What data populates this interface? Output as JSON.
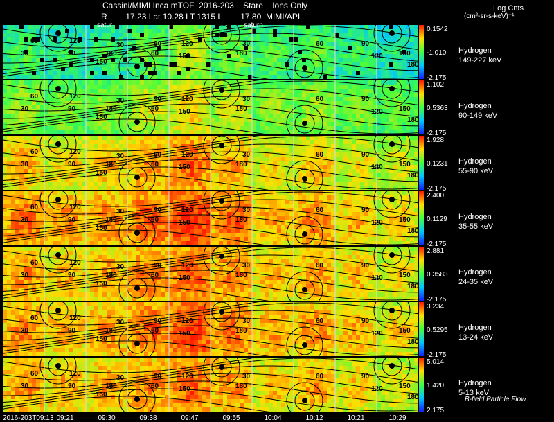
{
  "header": {
    "title": "Cassini/MIMI Inca mTOF  2016-203    Stare    Ions Only",
    "subline": "R        17.23 Lat 10.28 LT 1315 L        17.80  MIMI/APL",
    "unit_title": "Log Cnts",
    "unit_sub": "(cm²-sr-s-keV)⁻¹",
    "saturn_markers": [
      "satur",
      "saturn"
    ]
  },
  "footer": {
    "note": "B-field Particle Flow"
  },
  "colors": {
    "low": "#2040ff",
    "mid": "#30ff60",
    "high": "#ff2a00",
    "background": "#000000",
    "contour": "#000000"
  },
  "chart_data": {
    "type": "heatmap",
    "title": "Cassini/MIMI Inca mTOF  2016-203    Stare    Ions Only",
    "x_tick_labels": [
      "2016-203T09:13",
      "09:21",
      "09:30",
      "09:38",
      "09:47",
      "09:55",
      "10:04",
      "10:12",
      "10:21",
      "10:29"
    ],
    "frames_per_panel": 10,
    "contour_labels": [
      "30",
      "60",
      "90",
      "120",
      "150",
      "180"
    ],
    "panels": [
      {
        "species": "Hydrogen",
        "energy": "149-227 keV",
        "cb_max": "0.1542",
        "cb_mid": "-1.010",
        "cb_min": "-2.175",
        "intensity": [
          0.38,
          0.33,
          0.36,
          0.44,
          0.55,
          0.45,
          0.4,
          0.42,
          0.36,
          0.3
        ]
      },
      {
        "species": "Hydrogen",
        "energy": "90-149 keV",
        "cb_max": "1.102",
        "cb_mid": "0.5363",
        "cb_min": "-2.175",
        "intensity": [
          0.52,
          0.48,
          0.5,
          0.58,
          0.66,
          0.58,
          0.5,
          0.52,
          0.48,
          0.45
        ]
      },
      {
        "species": "Hydrogen",
        "energy": "55-90 keV",
        "cb_max": "1.928",
        "cb_mid": "0.1231",
        "cb_min": "-2.175",
        "intensity": [
          0.7,
          0.66,
          0.68,
          0.74,
          0.8,
          0.72,
          0.64,
          0.68,
          0.62,
          0.58
        ]
      },
      {
        "species": "Hydrogen",
        "energy": "35-55 keV",
        "cb_max": "2.400",
        "cb_mid": "0.1129",
        "cb_min": "-2.175",
        "intensity": [
          0.78,
          0.74,
          0.76,
          0.82,
          0.88,
          0.8,
          0.72,
          0.76,
          0.7,
          0.66
        ]
      },
      {
        "species": "Hydrogen",
        "energy": "24-35 keV",
        "cb_max": "2.881",
        "cb_mid": "0.3583",
        "cb_min": "-2.175",
        "intensity": [
          0.74,
          0.7,
          0.72,
          0.78,
          0.82,
          0.76,
          0.7,
          0.72,
          0.68,
          0.64
        ]
      },
      {
        "species": "Hydrogen",
        "energy": "13-24 keV",
        "cb_max": "3.234",
        "cb_mid": "0.5295",
        "cb_min": "-2.175",
        "intensity": [
          0.76,
          0.72,
          0.74,
          0.8,
          0.86,
          0.78,
          0.72,
          0.74,
          0.7,
          0.66
        ]
      },
      {
        "species": "Hydrogen",
        "energy": "5-13 keV",
        "cb_max": "5.014",
        "cb_mid": "1.420",
        "cb_min": "2.175",
        "intensity": [
          0.74,
          0.7,
          0.72,
          0.76,
          0.8,
          0.74,
          0.68,
          0.72,
          0.66,
          0.62
        ]
      }
    ]
  }
}
